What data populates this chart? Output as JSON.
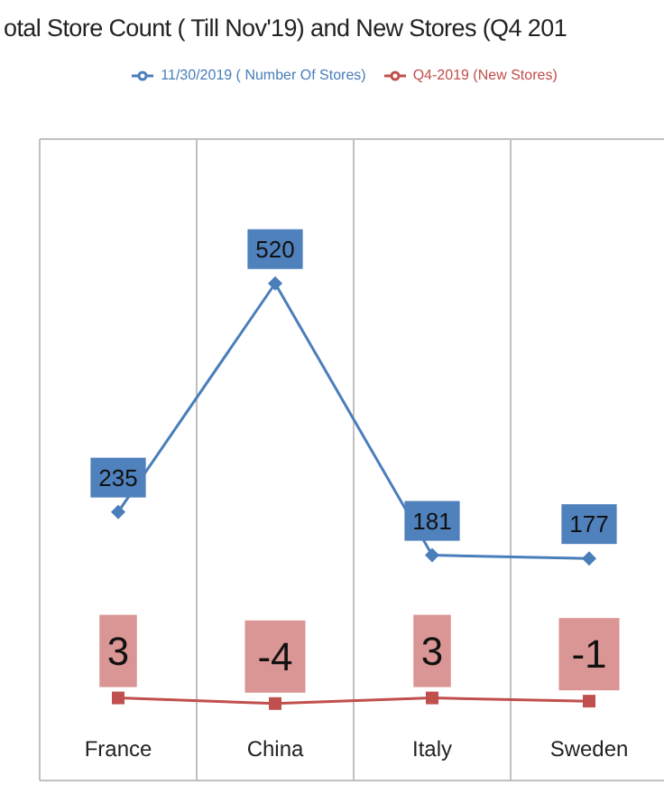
{
  "chart_data": {
    "type": "line",
    "title": "otal Store Count ( Till Nov'19) and New Stores (Q4 201",
    "categories": [
      "France",
      "China",
      "Italy",
      "Sweden"
    ],
    "series": [
      {
        "name": "11/30/2019 ( Number Of Stores)",
        "color": "#4a7ebb",
        "values": [
          235,
          520,
          181,
          177
        ],
        "marker": "diamond"
      },
      {
        "name": "Q4-2019 (New Stores)",
        "color": "#c0504d",
        "values": [
          3,
          -4,
          3,
          -1
        ],
        "marker": "square"
      }
    ],
    "ylim": [
      -100,
      700
    ],
    "tick_labels": "x",
    "grid": true,
    "legend": "top",
    "data_labels": true
  }
}
